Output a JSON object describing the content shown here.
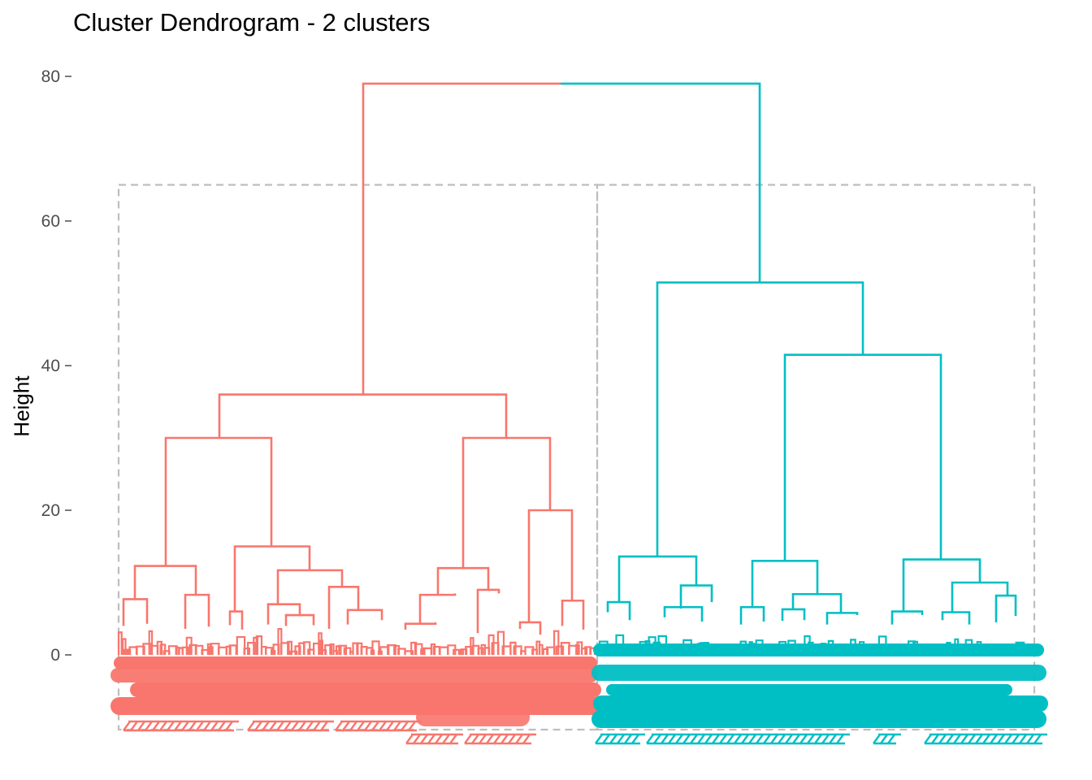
{
  "chart_data": {
    "type": "dendrogram",
    "title": "Cluster Dendrogram - 2 clusters",
    "xlabel": "",
    "ylabel": "Height",
    "ylim": [
      -11,
      82
    ],
    "y_ticks": [
      0,
      20,
      40,
      60,
      80
    ],
    "grid": false,
    "legend": "none",
    "n_clusters": 2,
    "root_height": 79,
    "clusters": [
      {
        "id": 1,
        "color": "#F8766D",
        "leaf_share": 0.52,
        "merge_heights": [
          36,
          30,
          15,
          12.3,
          11.7,
          9.4,
          7.7,
          7.3,
          7.0,
          5.9,
          5.8,
          5.5,
          5.0,
          4.3,
          4.1,
          30,
          20,
          12,
          9,
          8.3,
          7.9,
          4.2
        ]
      },
      {
        "id": 2,
        "color": "#00BFC4",
        "leaf_share": 0.48,
        "merge_heights": [
          51.5,
          41.5,
          13.6,
          13.3,
          12.9,
          10.0,
          9.6,
          8.4,
          7.3,
          6.6,
          6.0,
          5.5,
          4.2
        ]
      }
    ],
    "rect_border_color": "#bebebe"
  }
}
